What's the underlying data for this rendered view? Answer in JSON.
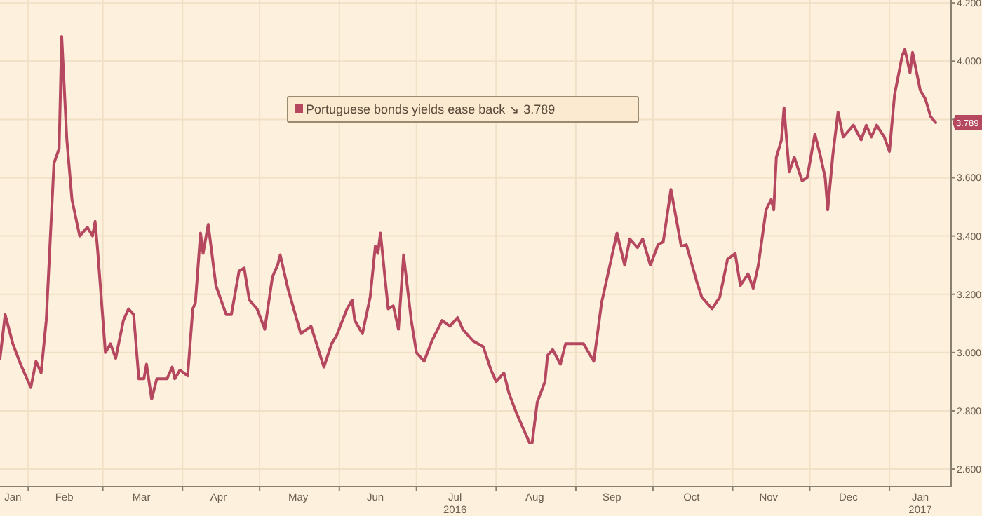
{
  "chart_data": {
    "type": "line",
    "legend": "top",
    "xlim": [
      "2016-01-21",
      "2017-01-25"
    ],
    "xticks": [
      {
        "value": "2016-02-01",
        "label": null
      },
      {
        "value": "2016-03-01",
        "label": null
      },
      {
        "value": "2016-04-01",
        "label": null
      },
      {
        "value": "2016-05-01",
        "label": null
      },
      {
        "value": "2016-06-01",
        "label": null
      },
      {
        "value": "2016-07-01",
        "label": null
      },
      {
        "value": "2016-08-01",
        "label": null
      },
      {
        "value": "2016-09-01",
        "label": null
      },
      {
        "value": "2016-10-01",
        "label": null
      },
      {
        "value": "2016-11-01",
        "label": null
      },
      {
        "value": "2016-12-01",
        "label": null
      },
      {
        "value": "2017-01-01",
        "label": null
      },
      {
        "value": "2016-01-26",
        "label": "Jan"
      },
      {
        "value": "2016-02-15",
        "label": "Feb"
      },
      {
        "value": "2016-03-16",
        "label": "Mar"
      },
      {
        "value": "2016-04-15",
        "label": "Apr"
      },
      {
        "value": "2016-05-16",
        "label": "May"
      },
      {
        "value": "2016-06-15",
        "label": "Jun"
      },
      {
        "value": "2016-07-16",
        "label": "Jul\n2016"
      },
      {
        "value": "2016-08-16",
        "label": "Aug"
      },
      {
        "value": "2016-09-15",
        "label": "Sep"
      },
      {
        "value": "2016-10-16",
        "label": "Oct"
      },
      {
        "value": "2016-11-15",
        "label": "Nov"
      },
      {
        "value": "2016-12-16",
        "label": "Dec"
      },
      {
        "value": "2017-01-13",
        "label": "Jan\n2017"
      }
    ],
    "ylim": [
      2.54,
      4.21
    ],
    "yticks": [
      {
        "value": 2.6,
        "label": "2.600"
      },
      {
        "value": 2.8,
        "label": "2.800"
      },
      {
        "value": 3.0,
        "label": "3.000"
      },
      {
        "value": 3.2,
        "label": "3.200"
      },
      {
        "value": 3.4,
        "label": "3.400"
      },
      {
        "value": 3.6,
        "label": "3.600"
      },
      {
        "value": 3.8,
        "label": null
      },
      {
        "value": 4.0,
        "label": "4.000"
      },
      {
        "value": 4.2,
        "label": "4.200"
      }
    ],
    "grid": true,
    "annotations": [
      {
        "text": "3.789",
        "y": 3.789
      }
    ],
    "series": [
      {
        "name": "Portuguese bonds yields ease back ↘ 3.789",
        "color": "#b5475f",
        "x": [
          "2016-01-21",
          "2016-01-23",
          "2016-01-26",
          "2016-01-29",
          "2016-02-02",
          "2016-02-04",
          "2016-02-06",
          "2016-02-08",
          "2016-02-11",
          "2016-02-13",
          "2016-02-14",
          "2016-02-16",
          "2016-02-18",
          "2016-02-21",
          "2016-02-24",
          "2016-02-26",
          "2016-02-27",
          "2016-02-28",
          "2016-03-02",
          "2016-03-04",
          "2016-03-06",
          "2016-03-09",
          "2016-03-11",
          "2016-03-13",
          "2016-03-15",
          "2016-03-17",
          "2016-03-18",
          "2016-03-20",
          "2016-03-22",
          "2016-03-26",
          "2016-03-28",
          "2016-03-29",
          "2016-03-31",
          "2016-04-03",
          "2016-04-05",
          "2016-04-06",
          "2016-04-08",
          "2016-04-09",
          "2016-04-11",
          "2016-04-14",
          "2016-04-18",
          "2016-04-20",
          "2016-04-23",
          "2016-04-25",
          "2016-04-27",
          "2016-04-30",
          "2016-05-03",
          "2016-05-06",
          "2016-05-08",
          "2016-05-09",
          "2016-05-12",
          "2016-05-17",
          "2016-05-21",
          "2016-05-26",
          "2016-05-29",
          "2016-05-31",
          "2016-06-04",
          "2016-06-06",
          "2016-06-07",
          "2016-06-10",
          "2016-06-13",
          "2016-06-15",
          "2016-06-16",
          "2016-06-17",
          "2016-06-20",
          "2016-06-22",
          "2016-06-24",
          "2016-06-26",
          "2016-06-29",
          "2016-07-01",
          "2016-07-04",
          "2016-07-07",
          "2016-07-11",
          "2016-07-14",
          "2016-07-17",
          "2016-07-19",
          "2016-07-23",
          "2016-07-27",
          "2016-07-30",
          "2016-08-01",
          "2016-08-04",
          "2016-08-06",
          "2016-08-09",
          "2016-08-12",
          "2016-08-14",
          "2016-08-15",
          "2016-08-17",
          "2016-08-20",
          "2016-08-21",
          "2016-08-23",
          "2016-08-26",
          "2016-08-28",
          "2016-08-31",
          "2016-09-04",
          "2016-09-08",
          "2016-09-11",
          "2016-09-14",
          "2016-09-17",
          "2016-09-20",
          "2016-09-22",
          "2016-09-25",
          "2016-09-27",
          "2016-09-30",
          "2016-10-03",
          "2016-10-05",
          "2016-10-08",
          "2016-10-12",
          "2016-10-14",
          "2016-10-18",
          "2016-10-20",
          "2016-10-24",
          "2016-10-27",
          "2016-10-30",
          "2016-11-02",
          "2016-11-04",
          "2016-11-07",
          "2016-11-09",
          "2016-11-11",
          "2016-11-14",
          "2016-11-16",
          "2016-11-17",
          "2016-11-18",
          "2016-11-20",
          "2016-11-21",
          "2016-11-23",
          "2016-11-25",
          "2016-11-28",
          "2016-11-30",
          "2016-12-03",
          "2016-12-05",
          "2016-12-07",
          "2016-12-08",
          "2016-12-10",
          "2016-12-12",
          "2016-12-14",
          "2016-12-18",
          "2016-12-21",
          "2016-12-23",
          "2016-12-25",
          "2016-12-27",
          "2016-12-30",
          "2017-01-01",
          "2017-01-03",
          "2017-01-06",
          "2017-01-07",
          "2017-01-09",
          "2017-01-10",
          "2017-01-13",
          "2017-01-15",
          "2017-01-17",
          "2017-01-19"
        ],
        "values": [
          2.98,
          3.13,
          3.03,
          2.96,
          2.88,
          2.97,
          2.93,
          3.11,
          3.65,
          3.7,
          4.085,
          3.73,
          3.525,
          3.4,
          3.43,
          3.4,
          3.45,
          3.35,
          3.0,
          3.03,
          2.98,
          3.11,
          3.15,
          3.13,
          2.91,
          2.91,
          2.96,
          2.84,
          2.91,
          2.91,
          2.95,
          2.91,
          2.94,
          2.92,
          3.15,
          3.17,
          3.41,
          3.34,
          3.44,
          3.23,
          3.13,
          3.13,
          3.28,
          3.29,
          3.18,
          3.15,
          3.08,
          3.26,
          3.3,
          3.335,
          3.22,
          3.065,
          3.09,
          2.95,
          3.03,
          3.06,
          3.15,
          3.18,
          3.11,
          3.065,
          3.19,
          3.365,
          3.34,
          3.41,
          3.15,
          3.16,
          3.08,
          3.335,
          3.11,
          3.0,
          2.97,
          3.04,
          3.11,
          3.09,
          3.12,
          3.08,
          3.04,
          3.02,
          2.94,
          2.9,
          2.93,
          2.86,
          2.79,
          2.73,
          2.69,
          2.69,
          2.83,
          2.9,
          2.99,
          3.01,
          2.96,
          3.03,
          3.03,
          3.03,
          2.97,
          3.17,
          3.29,
          3.41,
          3.3,
          3.39,
          3.36,
          3.39,
          3.3,
          3.37,
          3.38,
          3.56,
          3.365,
          3.37,
          3.245,
          3.19,
          3.15,
          3.19,
          3.32,
          3.34,
          3.23,
          3.27,
          3.22,
          3.3,
          3.49,
          3.525,
          3.49,
          3.67,
          3.73,
          3.84,
          3.62,
          3.67,
          3.59,
          3.6,
          3.75,
          3.68,
          3.6,
          3.49,
          3.68,
          3.825,
          3.74,
          3.78,
          3.73,
          3.78,
          3.74,
          3.78,
          3.74,
          3.69,
          3.885,
          4.02,
          4.04,
          3.96,
          4.03,
          3.9,
          3.87,
          3.81,
          3.789
        ]
      }
    ]
  }
}
